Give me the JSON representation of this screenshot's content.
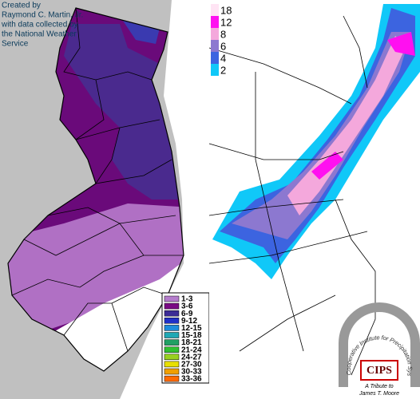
{
  "left_map": {
    "credit": [
      "Created by",
      "Raymond C. Martin, Jr.",
      "with data collected by",
      "the National Weather",
      "Service"
    ],
    "legend": [
      {
        "label": "1-3",
        "color": "#b47ccc"
      },
      {
        "label": "3-6",
        "color": "#7a0a84"
      },
      {
        "label": "6-9",
        "color": "#3c2c96"
      },
      {
        "label": "9-12",
        "color": "#2030c8"
      },
      {
        "label": "12-15",
        "color": "#1e8cdc"
      },
      {
        "label": "15-18",
        "color": "#20a8b4"
      },
      {
        "label": "18-21",
        "color": "#20a064"
      },
      {
        "label": "21-24",
        "color": "#30c030"
      },
      {
        "label": "24-27",
        "color": "#98d020"
      },
      {
        "label": "27-30",
        "color": "#e8e000"
      },
      {
        "label": "30-33",
        "color": "#f0a000"
      },
      {
        "label": "33-36",
        "color": "#ff6a00"
      }
    ]
  },
  "right_map": {
    "colorbar": [
      {
        "label": "18",
        "color": "#ffe4f4"
      },
      {
        "label": "12",
        "color": "#ff10f0"
      },
      {
        "label": "8",
        "color": "#f4a8dc"
      },
      {
        "label": "6",
        "color": "#8c78d0"
      },
      {
        "label": "4",
        "color": "#3c64e0"
      },
      {
        "label": "2",
        "color": "#10c8f8"
      }
    ]
  },
  "logo": {
    "ring": "Cooperative Institute for Precipitation Systems",
    "name": "CIPS",
    "tribute": "A Tribute to",
    "person": "James T. Moore"
  }
}
